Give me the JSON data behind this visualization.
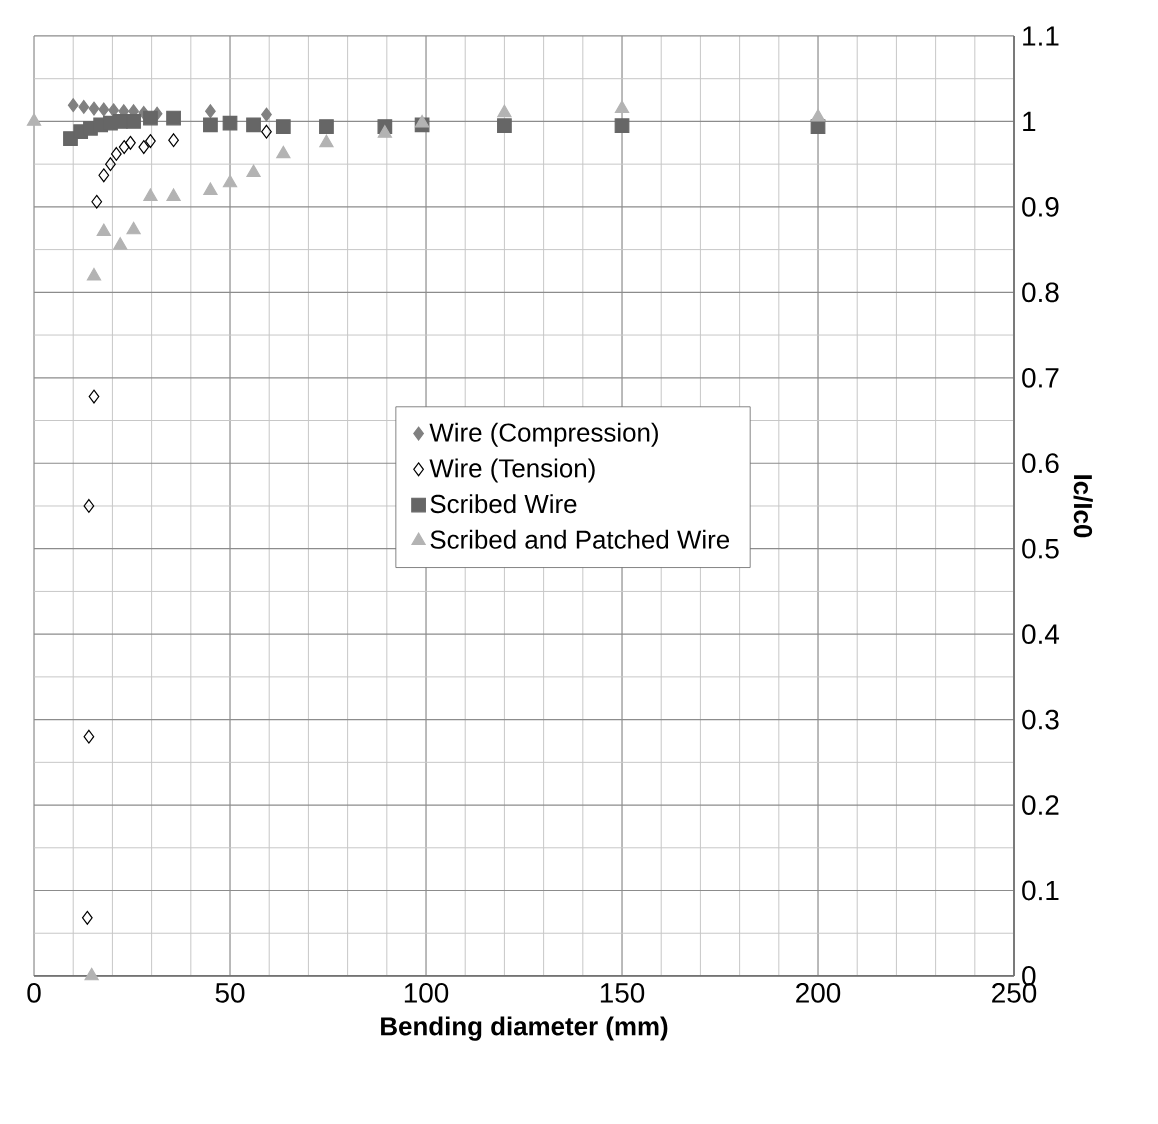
{
  "chart_data": {
    "type": "scatter",
    "xlabel": "Bending diameter (mm)",
    "ylabel": "Ic/Ic0",
    "xlim": [
      0,
      250
    ],
    "xticks": [
      0,
      50,
      100,
      150,
      200,
      250
    ],
    "ylim": [
      0,
      1.1
    ],
    "yticks": [
      0,
      0.1,
      0.2,
      0.3,
      0.4,
      0.5,
      0.6,
      0.7,
      0.8,
      0.9,
      1,
      1.1
    ],
    "grid": true,
    "legend": "center",
    "series": [
      {
        "name": "Wire (Compression)",
        "color": "#808080",
        "marker": "diamond",
        "x": [
          10,
          12.7,
          15.3,
          17.8,
          20.3,
          22.9,
          25.4,
          28,
          31.4,
          45,
          59.3
        ],
        "values": [
          1.019,
          1.017,
          1.015,
          1.014,
          1.013,
          1.012,
          1.012,
          1.01,
          1.009,
          1.012,
          1.008
        ]
      },
      {
        "name": "Wire (Tension)",
        "color": "#000000",
        "marker": "diamond",
        "x": [
          13.6,
          14,
          14,
          15.3,
          16,
          17.8,
          19.5,
          21,
          23,
          24.6,
          28,
          29.7,
          35.6,
          59.3
        ],
        "values": [
          0.068,
          0.28,
          0.55,
          0.678,
          0.906,
          0.937,
          0.95,
          0.962,
          0.97,
          0.975,
          0.97,
          0.977,
          0.978,
          0.988
        ]
      },
      {
        "name": "Scribed Wire",
        "color": "#666666",
        "marker": "square",
        "x": [
          9.3,
          11.9,
          14.4,
          17,
          19.5,
          22,
          25.4,
          29.7,
          35.6,
          45,
          50,
          56,
          63.6,
          74.6,
          89.5,
          99,
          120,
          150,
          200
        ],
        "values": [
          0.98,
          0.988,
          0.992,
          0.996,
          0.998,
          1,
          1,
          1.004,
          1.004,
          0.996,
          0.998,
          0.996,
          0.994,
          0.994,
          0.994,
          0.996,
          0.995,
          0.995,
          0.994
        ]
      },
      {
        "name": "Scribed and Patched Wire",
        "color": "#b3b3b3",
        "marker": "triangle",
        "x": [
          0,
          14.7,
          15.3,
          17.8,
          22,
          25.4,
          29.7,
          35.6,
          45,
          50,
          56,
          63.6,
          74.6,
          89.5,
          99,
          120,
          150,
          200
        ],
        "values": [
          1,
          0,
          0.819,
          0.871,
          0.855,
          0.873,
          0.912,
          0.912,
          0.919,
          0.928,
          0.94,
          0.962,
          0.975,
          0.986,
          0.998,
          1.01,
          1.015,
          1.005
        ]
      }
    ]
  }
}
